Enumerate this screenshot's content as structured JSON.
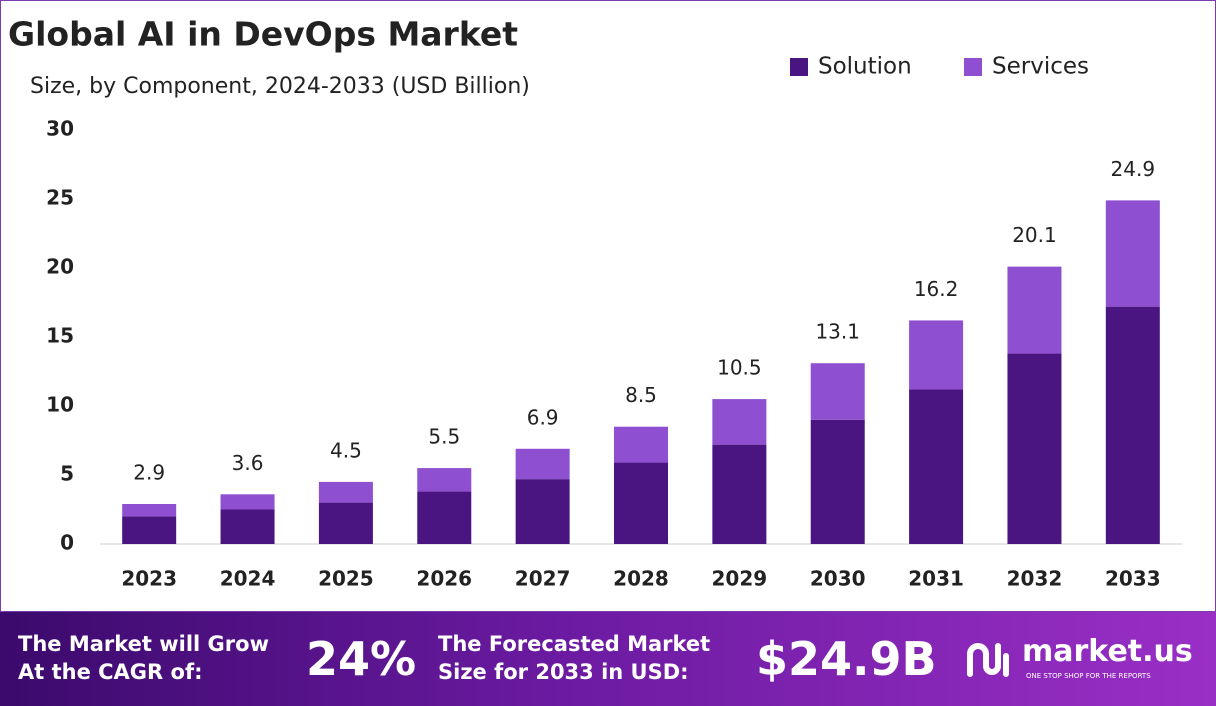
{
  "chart_data": {
    "type": "stacked_bar",
    "title": "Global AI in DevOps Market",
    "subtitle": "Size, by Component, 2024-2033 (USD Billion)",
    "categories": [
      "2023",
      "2024",
      "2025",
      "2026",
      "2027",
      "2028",
      "2029",
      "2030",
      "2031",
      "2032",
      "2033"
    ],
    "series": [
      {
        "name": "Solution",
        "color": "#4a1580",
        "values": [
          2.0,
          2.5,
          3.0,
          3.8,
          4.7,
          5.9,
          7.2,
          9.0,
          11.2,
          13.8,
          17.2
        ]
      },
      {
        "name": "Services",
        "color": "#8e4fd0",
        "values": [
          0.9,
          1.1,
          1.5,
          1.7,
          2.2,
          2.6,
          3.3,
          4.1,
          5.0,
          6.3,
          7.7
        ]
      }
    ],
    "totals": [
      2.9,
      3.6,
      4.5,
      5.5,
      6.9,
      8.5,
      10.5,
      13.1,
      16.2,
      20.1,
      24.9
    ],
    "ylim": [
      0,
      30
    ],
    "yticks": [
      0,
      5,
      10,
      15,
      20,
      25,
      30
    ],
    "grid": false,
    "legend": "top-right"
  },
  "footer": {
    "cagr_text": "The Market will Grow\nAt the CAGR of:",
    "cagr": "24%",
    "forecast_text": "The Forecasted Market\nSize for 2033 in USD:",
    "forecast": "$24.9B",
    "brand": "market.us",
    "tagline": "ONE STOP SHOP FOR THE REPORTS"
  }
}
